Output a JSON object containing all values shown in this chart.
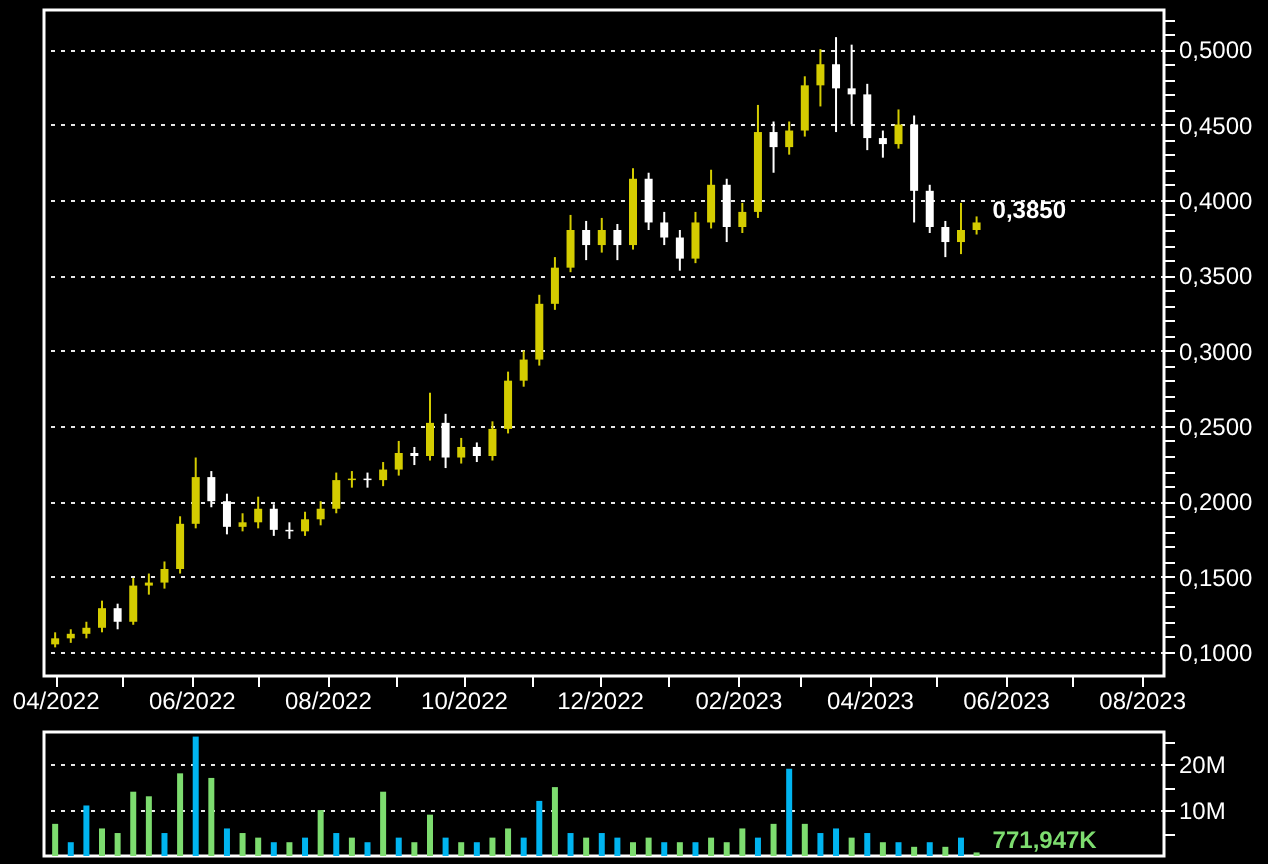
{
  "chart_data": [
    {
      "type": "candlestick",
      "x": [
        "2022-04-01",
        "2022-04-08",
        "2022-04-15",
        "2022-04-22",
        "2022-04-29",
        "2022-05-06",
        "2022-05-13",
        "2022-05-20",
        "2022-05-27",
        "2022-06-03",
        "2022-06-10",
        "2022-06-17",
        "2022-06-24",
        "2022-07-01",
        "2022-07-08",
        "2022-07-15",
        "2022-07-22",
        "2022-07-29",
        "2022-08-05",
        "2022-08-12",
        "2022-08-19",
        "2022-08-26",
        "2022-09-02",
        "2022-09-09",
        "2022-09-16",
        "2022-09-23",
        "2022-09-30",
        "2022-10-07",
        "2022-10-14",
        "2022-10-21",
        "2022-10-28",
        "2022-11-04",
        "2022-11-11",
        "2022-11-18",
        "2022-11-25",
        "2022-12-02",
        "2022-12-09",
        "2022-12-16",
        "2022-12-23",
        "2022-12-30",
        "2023-01-06",
        "2023-01-13",
        "2023-01-20",
        "2023-01-27",
        "2023-02-03",
        "2023-02-10",
        "2023-02-17",
        "2023-02-24",
        "2023-03-03",
        "2023-03-10",
        "2023-03-17",
        "2023-03-24",
        "2023-03-31",
        "2023-04-07",
        "2023-04-14",
        "2023-04-21",
        "2023-04-28",
        "2023-05-05",
        "2023-05-12",
        "2023-05-19"
      ],
      "ohlc": [
        [
          0.105,
          0.113,
          0.103,
          0.109
        ],
        [
          0.109,
          0.115,
          0.106,
          0.112
        ],
        [
          0.112,
          0.12,
          0.109,
          0.116
        ],
        [
          0.116,
          0.134,
          0.113,
          0.129
        ],
        [
          0.129,
          0.132,
          0.115,
          0.12
        ],
        [
          0.12,
          0.149,
          0.118,
          0.144
        ],
        [
          0.144,
          0.152,
          0.138,
          0.146
        ],
        [
          0.146,
          0.16,
          0.142,
          0.155
        ],
        [
          0.155,
          0.19,
          0.152,
          0.185
        ],
        [
          0.185,
          0.229,
          0.182,
          0.216
        ],
        [
          0.216,
          0.22,
          0.196,
          0.2
        ],
        [
          0.2,
          0.205,
          0.178,
          0.183
        ],
        [
          0.183,
          0.192,
          0.18,
          0.186
        ],
        [
          0.186,
          0.203,
          0.182,
          0.195
        ],
        [
          0.195,
          0.198,
          0.177,
          0.181
        ],
        [
          0.181,
          0.186,
          0.175,
          0.18
        ],
        [
          0.18,
          0.193,
          0.177,
          0.188
        ],
        [
          0.188,
          0.2,
          0.184,
          0.195
        ],
        [
          0.195,
          0.219,
          0.192,
          0.214
        ],
        [
          0.214,
          0.22,
          0.209,
          0.215
        ],
        [
          0.215,
          0.219,
          0.209,
          0.214
        ],
        [
          0.214,
          0.226,
          0.21,
          0.221
        ],
        [
          0.221,
          0.24,
          0.217,
          0.232
        ],
        [
          0.232,
          0.236,
          0.224,
          0.23
        ],
        [
          0.23,
          0.272,
          0.227,
          0.252
        ],
        [
          0.252,
          0.258,
          0.222,
          0.229
        ],
        [
          0.229,
          0.242,
          0.225,
          0.236
        ],
        [
          0.236,
          0.239,
          0.226,
          0.23
        ],
        [
          0.23,
          0.253,
          0.227,
          0.248
        ],
        [
          0.248,
          0.286,
          0.245,
          0.28
        ],
        [
          0.28,
          0.3,
          0.276,
          0.294
        ],
        [
          0.294,
          0.337,
          0.29,
          0.331
        ],
        [
          0.331,
          0.362,
          0.327,
          0.355
        ],
        [
          0.355,
          0.39,
          0.352,
          0.38
        ],
        [
          0.38,
          0.386,
          0.36,
          0.37
        ],
        [
          0.37,
          0.388,
          0.365,
          0.38
        ],
        [
          0.38,
          0.384,
          0.36,
          0.37
        ],
        [
          0.37,
          0.421,
          0.367,
          0.414
        ],
        [
          0.414,
          0.418,
          0.38,
          0.385
        ],
        [
          0.385,
          0.392,
          0.37,
          0.375
        ],
        [
          0.375,
          0.38,
          0.353,
          0.361
        ],
        [
          0.361,
          0.392,
          0.358,
          0.385
        ],
        [
          0.385,
          0.42,
          0.381,
          0.41
        ],
        [
          0.41,
          0.414,
          0.372,
          0.382
        ],
        [
          0.382,
          0.398,
          0.378,
          0.392
        ],
        [
          0.392,
          0.463,
          0.388,
          0.445
        ],
        [
          0.445,
          0.452,
          0.418,
          0.435
        ],
        [
          0.435,
          0.452,
          0.43,
          0.446
        ],
        [
          0.446,
          0.482,
          0.442,
          0.476
        ],
        [
          0.476,
          0.5,
          0.462,
          0.49
        ],
        [
          0.49,
          0.508,
          0.445,
          0.474
        ],
        [
          0.474,
          0.503,
          0.45,
          0.47
        ],
        [
          0.47,
          0.477,
          0.433,
          0.441
        ],
        [
          0.441,
          0.446,
          0.428,
          0.437
        ],
        [
          0.437,
          0.46,
          0.434,
          0.45
        ],
        [
          0.45,
          0.456,
          0.385,
          0.406
        ],
        [
          0.406,
          0.41,
          0.378,
          0.382
        ],
        [
          0.382,
          0.386,
          0.362,
          0.372
        ],
        [
          0.372,
          0.398,
          0.364,
          0.38
        ],
        [
          0.38,
          0.389,
          0.377,
          0.385
        ]
      ],
      "colors": [
        "#d4cc00",
        "#d4cc00",
        "#d4cc00",
        "#d4cc00",
        "#ffffff",
        "#d4cc00",
        "#d4cc00",
        "#d4cc00",
        "#d4cc00",
        "#d4cc00",
        "#ffffff",
        "#ffffff",
        "#d4cc00",
        "#d4cc00",
        "#ffffff",
        "#ffffff",
        "#d4cc00",
        "#d4cc00",
        "#d4cc00",
        "#d4cc00",
        "#ffffff",
        "#d4cc00",
        "#d4cc00",
        "#ffffff",
        "#d4cc00",
        "#ffffff",
        "#d4cc00",
        "#ffffff",
        "#d4cc00",
        "#d4cc00",
        "#d4cc00",
        "#d4cc00",
        "#d4cc00",
        "#d4cc00",
        "#ffffff",
        "#d4cc00",
        "#ffffff",
        "#d4cc00",
        "#ffffff",
        "#ffffff",
        "#ffffff",
        "#d4cc00",
        "#d4cc00",
        "#ffffff",
        "#d4cc00",
        "#d4cc00",
        "#ffffff",
        "#d4cc00",
        "#d4cc00",
        "#d4cc00",
        "#ffffff",
        "#ffffff",
        "#ffffff",
        "#ffffff",
        "#d4cc00",
        "#ffffff",
        "#ffffff",
        "#ffffff",
        "#d4cc00",
        "#d4cc00"
      ],
      "xlim": [
        "2022-03-27",
        "2023-08-11"
      ],
      "xticks": [
        {
          "value": "2022-04",
          "label": "04/2022"
        },
        {
          "value": "2022-05",
          "label": null
        },
        {
          "value": "2022-06",
          "label": "06/2022"
        },
        {
          "value": "2022-07",
          "label": null
        },
        {
          "value": "2022-08",
          "label": "08/2022"
        },
        {
          "value": "2022-09",
          "label": null
        },
        {
          "value": "2022-10",
          "label": "10/2022"
        },
        {
          "value": "2022-11",
          "label": null
        },
        {
          "value": "2022-12",
          "label": "12/2022"
        },
        {
          "value": "2023-01",
          "label": null
        },
        {
          "value": "2023-02",
          "label": "02/2023"
        },
        {
          "value": "2023-03",
          "label": null
        },
        {
          "value": "2023-04",
          "label": "04/2023"
        },
        {
          "value": "2023-05",
          "label": null
        },
        {
          "value": "2023-06",
          "label": "06/2023"
        },
        {
          "value": "2023-07",
          "label": null
        },
        {
          "value": "2023-08",
          "label": "08/2023"
        }
      ],
      "ylim": [
        0.084,
        0.526
      ],
      "yticks": [
        {
          "value": 0.1,
          "label": "0,1000"
        },
        {
          "value": 0.11,
          "label": null
        },
        {
          "value": 0.12,
          "label": null
        },
        {
          "value": 0.13,
          "label": null
        },
        {
          "value": 0.14,
          "label": null
        },
        {
          "value": 0.15,
          "label": "0,1500"
        },
        {
          "value": 0.16,
          "label": null
        },
        {
          "value": 0.17,
          "label": null
        },
        {
          "value": 0.18,
          "label": null
        },
        {
          "value": 0.19,
          "label": null
        },
        {
          "value": 0.2,
          "label": "0,2000"
        },
        {
          "value": 0.21,
          "label": null
        },
        {
          "value": 0.22,
          "label": null
        },
        {
          "value": 0.23,
          "label": null
        },
        {
          "value": 0.24,
          "label": null
        },
        {
          "value": 0.25,
          "label": "0,2500"
        },
        {
          "value": 0.26,
          "label": null
        },
        {
          "value": 0.27,
          "label": null
        },
        {
          "value": 0.28,
          "label": null
        },
        {
          "value": 0.29,
          "label": null
        },
        {
          "value": 0.3,
          "label": "0,3000"
        },
        {
          "value": 0.31,
          "label": null
        },
        {
          "value": 0.32,
          "label": null
        },
        {
          "value": 0.33,
          "label": null
        },
        {
          "value": 0.34,
          "label": null
        },
        {
          "value": 0.35,
          "label": "0,3500"
        },
        {
          "value": 0.36,
          "label": null
        },
        {
          "value": 0.37,
          "label": null
        },
        {
          "value": 0.38,
          "label": null
        },
        {
          "value": 0.39,
          "label": null
        },
        {
          "value": 0.4,
          "label": "0,4000"
        },
        {
          "value": 0.41,
          "label": null
        },
        {
          "value": 0.42,
          "label": null
        },
        {
          "value": 0.43,
          "label": null
        },
        {
          "value": 0.44,
          "label": null
        },
        {
          "value": 0.45,
          "label": "0,4500"
        },
        {
          "value": 0.46,
          "label": null
        },
        {
          "value": 0.47,
          "label": null
        },
        {
          "value": 0.48,
          "label": null
        },
        {
          "value": 0.49,
          "label": null
        },
        {
          "value": 0.5,
          "label": "0,5000"
        },
        {
          "value": 0.51,
          "label": null
        },
        {
          "value": 0.52,
          "label": null
        }
      ],
      "grid": "y",
      "annotations": [
        {
          "text": "0,3850",
          "x": "2023-05-19",
          "y": 0.385
        }
      ]
    },
    {
      "type": "bar",
      "x": [
        "2022-04-01",
        "2022-04-08",
        "2022-04-15",
        "2022-04-22",
        "2022-04-29",
        "2022-05-06",
        "2022-05-13",
        "2022-05-20",
        "2022-05-27",
        "2022-06-03",
        "2022-06-10",
        "2022-06-17",
        "2022-06-24",
        "2022-07-01",
        "2022-07-08",
        "2022-07-15",
        "2022-07-22",
        "2022-07-29",
        "2022-08-05",
        "2022-08-12",
        "2022-08-19",
        "2022-08-26",
        "2022-09-02",
        "2022-09-09",
        "2022-09-16",
        "2022-09-23",
        "2022-09-30",
        "2022-10-07",
        "2022-10-14",
        "2022-10-21",
        "2022-10-28",
        "2022-11-04",
        "2022-11-11",
        "2022-11-18",
        "2022-11-25",
        "2022-12-02",
        "2022-12-09",
        "2022-12-16",
        "2022-12-23",
        "2022-12-30",
        "2023-01-06",
        "2023-01-13",
        "2023-01-20",
        "2023-01-27",
        "2023-02-03",
        "2023-02-10",
        "2023-02-17",
        "2023-02-24",
        "2023-03-03",
        "2023-03-10",
        "2023-03-17",
        "2023-03-24",
        "2023-03-31",
        "2023-04-07",
        "2023-04-14",
        "2023-04-21",
        "2023-04-28",
        "2023-05-05",
        "2023-05-12",
        "2023-05-19"
      ],
      "values": [
        7,
        3,
        11,
        6,
        5,
        14,
        13,
        5,
        18,
        26,
        17,
        6,
        5,
        4,
        3,
        3,
        4,
        10,
        5,
        4,
        3,
        14,
        4,
        3,
        9,
        4,
        3,
        3,
        4,
        6,
        4,
        12,
        15,
        5,
        4,
        5,
        4,
        3,
        4,
        3,
        3,
        3,
        4,
        3,
        6,
        4,
        7,
        19,
        7,
        5,
        6,
        4,
        5,
        3,
        3,
        2,
        3,
        2,
        4,
        0.772
      ],
      "colors": [
        "#7ddc6f",
        "#00b4f0",
        "#00b4f0",
        "#7ddc6f",
        "#7ddc6f",
        "#7ddc6f",
        "#7ddc6f",
        "#00b4f0",
        "#7ddc6f",
        "#00b4f0",
        "#7ddc6f",
        "#00b4f0",
        "#7ddc6f",
        "#7ddc6f",
        "#00b4f0",
        "#7ddc6f",
        "#00b4f0",
        "#7ddc6f",
        "#00b4f0",
        "#7ddc6f",
        "#00b4f0",
        "#7ddc6f",
        "#00b4f0",
        "#7ddc6f",
        "#7ddc6f",
        "#00b4f0",
        "#7ddc6f",
        "#00b4f0",
        "#7ddc6f",
        "#7ddc6f",
        "#00b4f0",
        "#00b4f0",
        "#7ddc6f",
        "#00b4f0",
        "#7ddc6f",
        "#00b4f0",
        "#00b4f0",
        "#7ddc6f",
        "#7ddc6f",
        "#00b4f0",
        "#7ddc6f",
        "#00b4f0",
        "#7ddc6f",
        "#7ddc6f",
        "#7ddc6f",
        "#00b4f0",
        "#7ddc6f",
        "#00b4f0",
        "#7ddc6f",
        "#00b4f0",
        "#00b4f0",
        "#7ddc6f",
        "#00b4f0",
        "#7ddc6f",
        "#00b4f0",
        "#7ddc6f",
        "#00b4f0",
        "#7ddc6f",
        "#00b4f0",
        "#7ddc6f"
      ],
      "xlim": [
        "2022-03-27",
        "2023-08-11"
      ],
      "ylim": [
        0,
        27
      ],
      "yticks": [
        {
          "value": 5,
          "label": null
        },
        {
          "value": 10,
          "label": "10M"
        },
        {
          "value": 15,
          "label": null
        },
        {
          "value": 20,
          "label": "20M"
        },
        {
          "value": 25,
          "label": null
        }
      ],
      "tick_labels": "y",
      "grid": "y",
      "annotations": [
        {
          "text": "771,947K",
          "x": "2023-05-19",
          "y": 0.772
        }
      ]
    }
  ]
}
